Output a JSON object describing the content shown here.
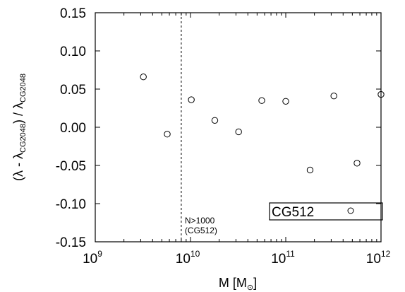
{
  "chart_data": {
    "type": "scatter",
    "title": "",
    "x_scale": "log",
    "xlim": [
      1000000000,
      1000000000000
    ],
    "ylim": [
      -0.15,
      0.15
    ],
    "xlabel": {
      "main": "M [M",
      "sub": "⊙",
      "close": "]"
    },
    "ylabel": {
      "p1": "(λ - λ",
      "s1": "CG2048",
      "p2": ") / λ",
      "s2": "CG2048"
    },
    "x_ticks": [
      {
        "value": 1000000000,
        "base": "10",
        "exp": "9"
      },
      {
        "value": 10000000000,
        "base": "10",
        "exp": "10"
      },
      {
        "value": 100000000000,
        "base": "10",
        "exp": "11"
      },
      {
        "value": 1000000000000,
        "base": "10",
        "exp": "12"
      }
    ],
    "y_ticks": [
      {
        "value": 0.15,
        "label": "0.15"
      },
      {
        "value": 0.1,
        "label": "0.10"
      },
      {
        "value": 0.05,
        "label": "0.05"
      },
      {
        "value": 0.0,
        "label": "0.00"
      },
      {
        "value": -0.05,
        "label": "-0.05"
      },
      {
        "value": -0.1,
        "label": "-0.10"
      },
      {
        "value": -0.15,
        "label": "-0.15"
      }
    ],
    "grid": false,
    "series": [
      {
        "name": "CG512",
        "marker": "open-circle",
        "points": [
          {
            "x": 3200000000,
            "y": 0.066
          },
          {
            "x": 5700000000,
            "y": -0.009
          },
          {
            "x": 10200000000,
            "y": 0.036
          },
          {
            "x": 18000000000,
            "y": 0.009
          },
          {
            "x": 32000000000,
            "y": -0.006
          },
          {
            "x": 56000000000,
            "y": 0.035
          },
          {
            "x": 100000000000,
            "y": 0.034
          },
          {
            "x": 180000000000,
            "y": -0.056
          },
          {
            "x": 320000000000,
            "y": 0.041
          },
          {
            "x": 560000000000,
            "y": -0.047
          },
          {
            "x": 1000000000000,
            "y": 0.043
          }
        ]
      }
    ],
    "vertical_line": {
      "x": 8000000000,
      "style": "dashed",
      "label_line1": "N>1000",
      "label_line2": "(CG512)"
    },
    "legend": {
      "position": "bottom-right",
      "label": "CG512"
    }
  }
}
